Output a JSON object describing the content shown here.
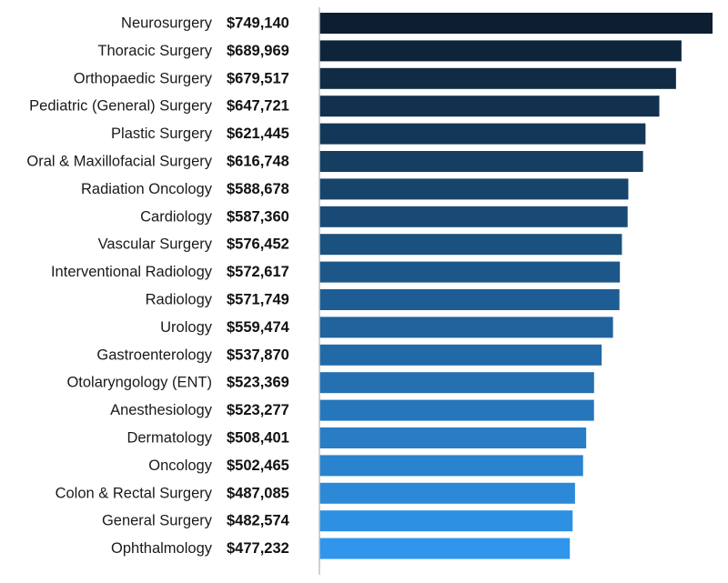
{
  "chart_data": {
    "type": "bar",
    "orientation": "horizontal",
    "categories": [
      "Neurosurgery",
      "Thoracic Surgery",
      "Orthopaedic Surgery",
      "Pediatric (General) Surgery",
      "Plastic Surgery",
      "Oral & Maxillofacial Surgery",
      "Radiation Oncology",
      "Cardiology",
      "Vascular Surgery",
      "Interventional Radiology",
      "Radiology",
      "Urology",
      "Gastroenterology",
      "Otolaryngology (ENT)",
      "Anesthesiology",
      "Dermatology",
      "Oncology",
      "Colon & Rectal Surgery",
      "General Surgery",
      "Ophthalmology"
    ],
    "values": [
      749140,
      689969,
      679517,
      647721,
      621445,
      616748,
      588678,
      587360,
      576452,
      572617,
      571749,
      559474,
      537870,
      523369,
      523277,
      508401,
      502465,
      487085,
      482574,
      477232
    ],
    "value_labels": [
      "$749,140",
      "$689,969",
      "$679,517",
      "$647,721",
      "$621,445",
      "$616,748",
      "$588,678",
      "$587,360",
      "$576,452",
      "$572,617",
      "$571,749",
      "$559,474",
      "$537,870",
      "$523,369",
      "$523,277",
      "$508,401",
      "$502,465",
      "$487,085",
      "$482,574",
      "$477,232"
    ],
    "title": "",
    "xlabel": "",
    "ylabel": "",
    "grid": false,
    "legend": "none",
    "colors": {
      "gradient_start": "#0c1e30",
      "gradient_end": "#2f96ec",
      "axis": "#b8c2cc"
    }
  }
}
